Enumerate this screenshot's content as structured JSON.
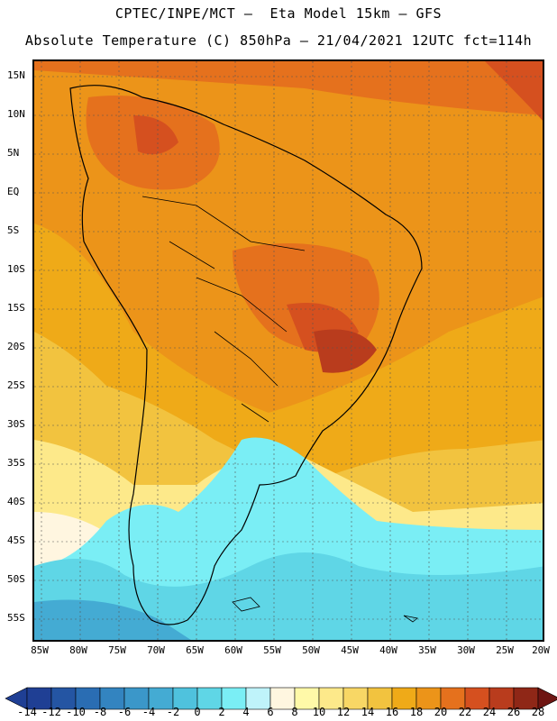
{
  "header": {
    "line1": "CPTEC/INPE/MCT –  Eta Model 15km – GFS",
    "line2": "Absolute Temperature (C) 850hPa – 21/04/2021 12UTC fct=114h"
  },
  "axes": {
    "lat_labels": [
      "15N",
      "10N",
      "5N",
      "EQ",
      "5S",
      "10S",
      "15S",
      "20S",
      "25S",
      "30S",
      "35S",
      "40S",
      "45S",
      "50S",
      "55S"
    ],
    "lon_labels": [
      "85W",
      "80W",
      "75W",
      "70W",
      "65W",
      "60W",
      "55W",
      "50W",
      "45W",
      "40W",
      "35W",
      "30W",
      "25W",
      "20W"
    ]
  },
  "colorbar": {
    "labels": [
      "-14",
      "-12",
      "-10",
      "-8",
      "-6",
      "-4",
      "-2",
      "0",
      "2",
      "4",
      "6",
      "8",
      "10",
      "12",
      "14",
      "16",
      "18",
      "20",
      "22",
      "24",
      "26",
      "28"
    ],
    "colors": [
      "#1f3f94",
      "#2455a3",
      "#2a6db3",
      "#3384c0",
      "#3b97c9",
      "#44abd3",
      "#4fc2dd",
      "#5fd6e6",
      "#7aeef5",
      "#bff3fa",
      "#fff6e0",
      "#fff9a8",
      "#fde98a",
      "#f8d765",
      "#f2c33f",
      "#efaa18",
      "#ec9419",
      "#e5711d",
      "#d5501f",
      "#b93c1d",
      "#8f2717",
      "#6e1512"
    ]
  },
  "colors": {
    "hot_core": "#d5501f",
    "warm": "#e5711d",
    "ocean_orange": "#ec9419",
    "subtropical": "#efaa18",
    "mild": "#f2c33f",
    "cool": "#fde98a",
    "pale": "#fff6e0",
    "cold": "#5fd6e6",
    "colder": "#44abd3"
  }
}
